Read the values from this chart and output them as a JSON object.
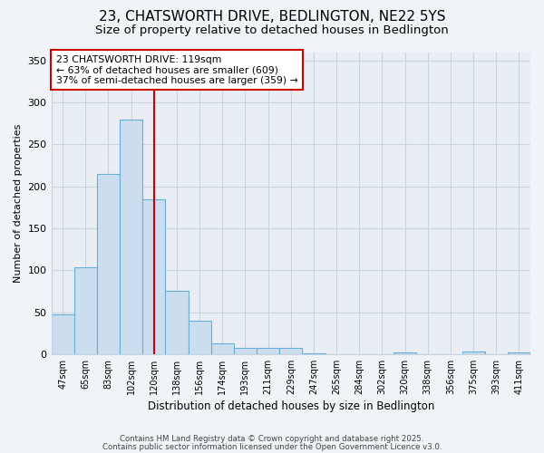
{
  "title1": "23, CHATSWORTH DRIVE, BEDLINGTON, NE22 5YS",
  "title2": "Size of property relative to detached houses in Bedlington",
  "xlabel": "Distribution of detached houses by size in Bedlington",
  "ylabel": "Number of detached properties",
  "bar_labels": [
    "47sqm",
    "65sqm",
    "83sqm",
    "102sqm",
    "120sqm",
    "138sqm",
    "156sqm",
    "174sqm",
    "193sqm",
    "211sqm",
    "229sqm",
    "247sqm",
    "265sqm",
    "284sqm",
    "302sqm",
    "320sqm",
    "338sqm",
    "356sqm",
    "375sqm",
    "393sqm",
    "411sqm"
  ],
  "bar_values": [
    47,
    103,
    215,
    280,
    185,
    75,
    40,
    13,
    7,
    7,
    7,
    1,
    0,
    0,
    0,
    2,
    0,
    0,
    3,
    0,
    2
  ],
  "bar_color": "#ccddf0",
  "bar_edge_color": "#6aaed6",
  "vline_x": 4.0,
  "vline_color": "#cc0000",
  "annotation_title": "23 CHATSWORTH DRIVE: 119sqm",
  "annotation_line2": "← 63% of detached houses are smaller (609)",
  "annotation_line3": "37% of semi-detached houses are larger (359) →",
  "annotation_box_color": "#cc0000",
  "ylim": [
    0,
    360
  ],
  "yticks": [
    0,
    50,
    100,
    150,
    200,
    250,
    300,
    350
  ],
  "footer1": "Contains HM Land Registry data © Crown copyright and database right 2025.",
  "footer2": "Contains public sector information licensed under the Open Government Licence v3.0.",
  "bg_color": "#f0f4f8",
  "plot_bg_color": "#e8eef4",
  "grid_color": "#c8d4e0",
  "title1_fontsize": 11,
  "title2_fontsize": 9.5
}
